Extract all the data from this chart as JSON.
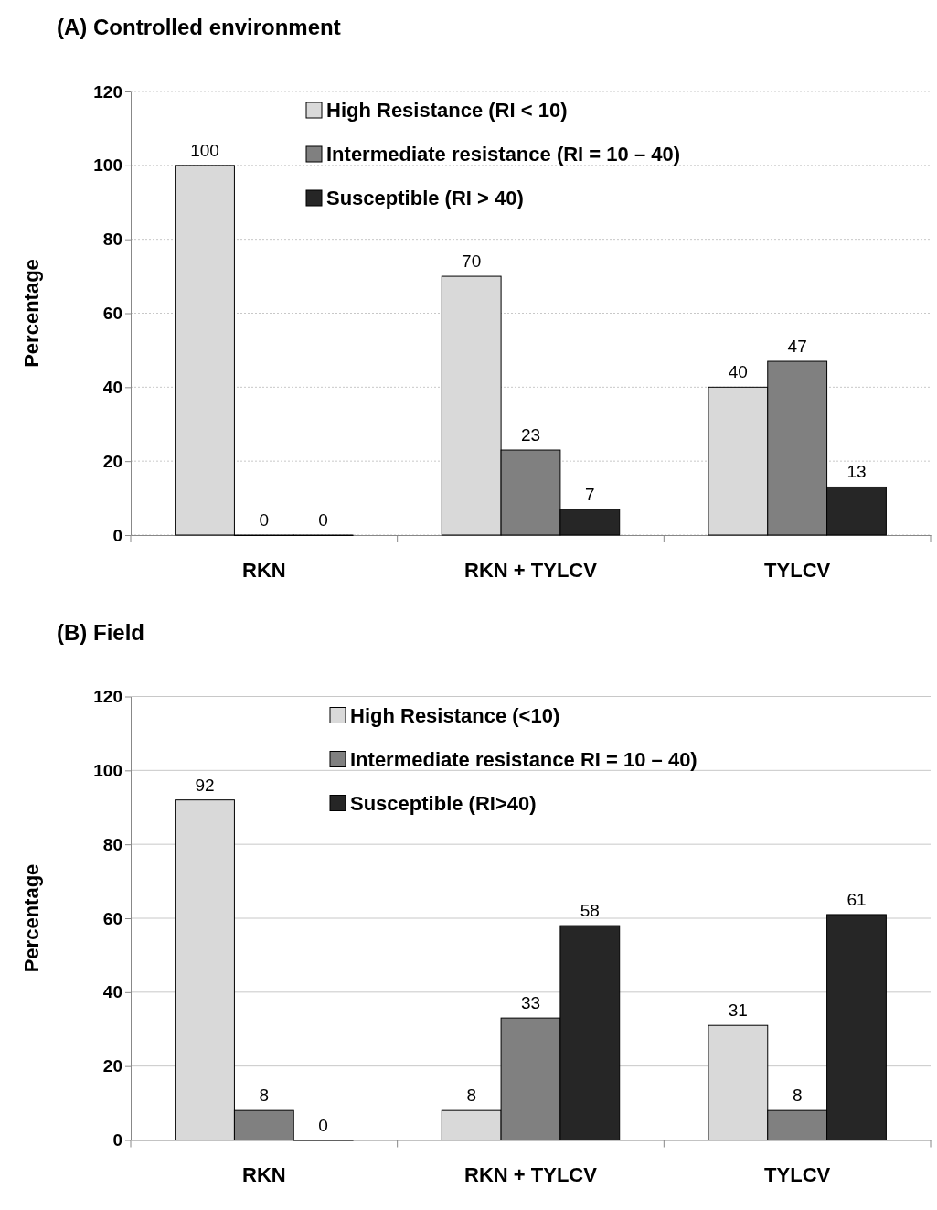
{
  "chart_data": [
    {
      "type": "bar",
      "title": "(A) Controlled environment",
      "ylabel": "Percentage",
      "categories": [
        "RKN",
        "RKN + TYLCV",
        "TYLCV"
      ],
      "series": [
        {
          "name": "High Resistance (RI < 10)",
          "color": "#d9d9d9",
          "values": [
            100,
            70,
            40
          ]
        },
        {
          "name": "Intermediate resistance (RI = 10 – 40)",
          "color": "#808080",
          "values": [
            0,
            23,
            47
          ]
        },
        {
          "name": "Susceptible (RI > 40)",
          "color": "#262626",
          "values": [
            0,
            7,
            13
          ]
        }
      ],
      "ylim": [
        0,
        120
      ],
      "yticks": [
        0,
        20,
        40,
        60,
        80,
        100,
        120
      ],
      "grid": "y",
      "legend": "top",
      "data_labels": true
    },
    {
      "type": "bar",
      "title": "(B) Field",
      "ylabel": "Percentage",
      "categories": [
        "RKN",
        "RKN + TYLCV",
        "TYLCV"
      ],
      "series": [
        {
          "name": "High Resistance (<10)",
          "color": "#d9d9d9",
          "values": [
            92,
            8,
            31
          ]
        },
        {
          "name": "Intermediate resistance RI = 10 – 40)",
          "color": "#808080",
          "values": [
            8,
            33,
            8
          ]
        },
        {
          "name": "Susceptible (RI>40)",
          "color": "#262626",
          "values": [
            0,
            58,
            61
          ]
        }
      ],
      "ylim": [
        0,
        120
      ],
      "yticks": [
        0,
        20,
        40,
        60,
        80,
        100,
        120
      ],
      "grid": "y",
      "legend": "top",
      "data_labels": true
    }
  ]
}
